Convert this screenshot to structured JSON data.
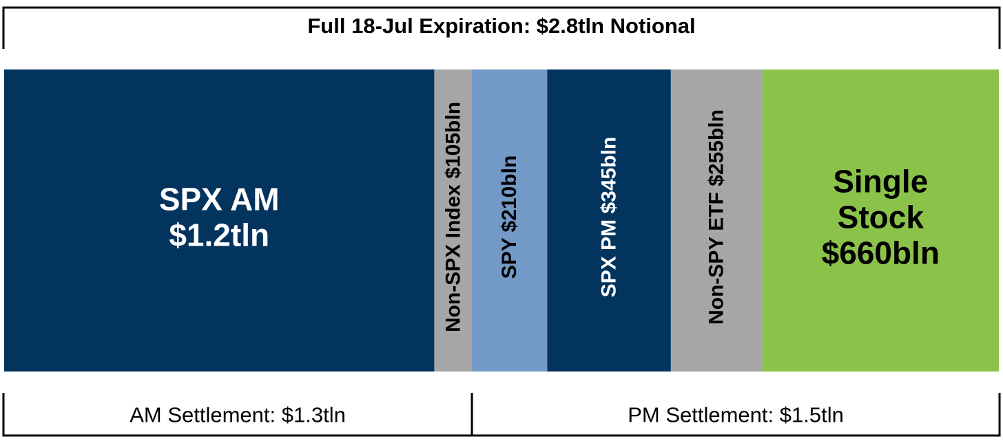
{
  "chart_data": {
    "type": "bar",
    "orientation": "stacked-horizontal-proportional",
    "title": "Full 18-Jul Expiration: $2.8tln Notional",
    "unit": "bln",
    "segments": [
      {
        "lines": [
          "SPX AM",
          "$1.2tln"
        ],
        "value": 1200,
        "color": "#02345e",
        "text_color": "#ffffff",
        "vertical": false
      },
      {
        "lines": [
          "Non-SPX Index $105bln"
        ],
        "value": 105,
        "color": "#a6a6a6",
        "text_color": "#000000",
        "vertical": true
      },
      {
        "lines": [
          "SPY $210bln"
        ],
        "value": 210,
        "color": "#7399c6",
        "text_color": "#000000",
        "vertical": true
      },
      {
        "lines": [
          "SPX PM $345bln"
        ],
        "value": 345,
        "color": "#02345e",
        "text_color": "#ffffff",
        "vertical": true
      },
      {
        "lines": [
          "Non-SPY ETF $255bln"
        ],
        "value": 255,
        "color": "#a6a6a6",
        "text_color": "#000000",
        "vertical": true
      },
      {
        "lines": [
          "Single",
          "Stock",
          "$660bln"
        ],
        "value": 660,
        "color": "#8bc34a",
        "text_color": "#000000",
        "vertical": false
      }
    ],
    "brackets": [
      {
        "label": "AM Settlement: $1.3tln",
        "value": 1300,
        "from_segment": 0,
        "to_segment": 1
      },
      {
        "label": "PM Settlement: $1.5tln",
        "value": 1500,
        "from_segment": 2,
        "to_segment": 5
      }
    ]
  }
}
